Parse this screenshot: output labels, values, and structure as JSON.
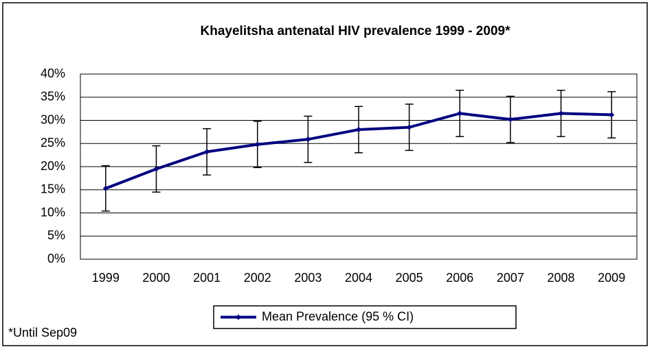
{
  "chart_data": {
    "type": "line",
    "title": "Khayelitsha antenatal HIV prevalence 1999 - 2009*",
    "annotation": "*Until Sep09",
    "categories": [
      "1999",
      "2000",
      "2001",
      "2002",
      "2003",
      "2004",
      "2005",
      "2006",
      "2007",
      "2008",
      "2009"
    ],
    "series": [
      {
        "name": "Mean Prevalence (95 % CI)",
        "color": "#000080",
        "values": [
          15.3,
          19.5,
          23.2,
          24.8,
          25.9,
          28.0,
          28.5,
          31.5,
          30.2,
          31.5,
          31.2
        ],
        "errors": [
          4.9,
          5,
          5,
          5,
          5,
          5,
          5,
          5,
          5,
          5,
          5
        ]
      }
    ],
    "ylim": [
      0,
      40
    ],
    "yticks": [
      {
        "value": 0,
        "label": "0%"
      },
      {
        "value": 5,
        "label": "5%"
      },
      {
        "value": 10,
        "label": "10%"
      },
      {
        "value": 15,
        "label": "15%"
      },
      {
        "value": 20,
        "label": "20%"
      },
      {
        "value": 25,
        "label": "25%"
      },
      {
        "value": 30,
        "label": "30%"
      },
      {
        "value": 35,
        "label": "35%"
      },
      {
        "value": 40,
        "label": "40%"
      }
    ],
    "grid": true
  }
}
